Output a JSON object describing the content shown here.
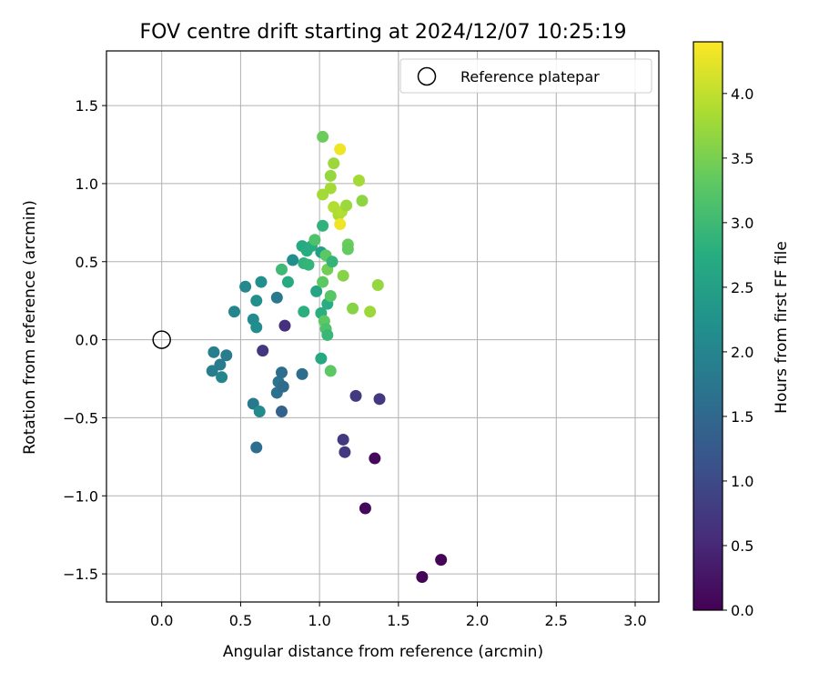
{
  "chart_data": {
    "type": "scatter",
    "title": "FOV centre drift starting at 2024/12/07 10:25:19",
    "xlabel": "Angular distance from reference (arcmin)",
    "ylabel": "Rotation from reference (arcmin)",
    "colorbar_label": "Hours from first FF file",
    "colormap": "viridis",
    "xlim": [
      -0.35,
      3.15
    ],
    "ylim": [
      -1.68,
      1.85
    ],
    "clim": [
      0.0,
      4.4
    ],
    "x_ticks": [
      0.0,
      0.5,
      1.0,
      1.5,
      2.0,
      2.5,
      3.0
    ],
    "x_tick_labels": [
      "0.0",
      "0.5",
      "1.0",
      "1.5",
      "2.0",
      "2.5",
      "3.0"
    ],
    "y_ticks": [
      -1.5,
      -1.0,
      -0.5,
      0.0,
      0.5,
      1.0,
      1.5
    ],
    "y_tick_labels": [
      "−1.5",
      "−1.0",
      "−0.5",
      "0.0",
      "0.5",
      "1.0",
      "1.5"
    ],
    "colorbar_ticks": [
      0.0,
      0.5,
      1.0,
      1.5,
      2.0,
      2.5,
      3.0,
      3.5,
      4.0
    ],
    "colorbar_tick_labels": [
      "0.0",
      "0.5",
      "1.0",
      "1.5",
      "2.0",
      "2.5",
      "3.0",
      "3.5",
      "4.0"
    ],
    "grid": true,
    "legend": {
      "location": "upper right",
      "entries": [
        {
          "label": "Reference platepar",
          "marker": "open-circle"
        }
      ]
    },
    "reference_point": {
      "x": 0.0,
      "y": 0.0
    },
    "points": [
      {
        "x": 1.65,
        "y": -1.52,
        "h": 0.05
      },
      {
        "x": 1.77,
        "y": -1.41,
        "h": 0.05
      },
      {
        "x": 1.29,
        "y": -1.08,
        "h": 0.1
      },
      {
        "x": 1.35,
        "y": -0.76,
        "h": 0.1
      },
      {
        "x": 1.16,
        "y": -0.72,
        "h": 0.75
      },
      {
        "x": 1.15,
        "y": -0.64,
        "h": 0.75
      },
      {
        "x": 1.23,
        "y": -0.36,
        "h": 0.75
      },
      {
        "x": 1.38,
        "y": -0.38,
        "h": 0.75
      },
      {
        "x": 0.78,
        "y": 0.09,
        "h": 0.6
      },
      {
        "x": 0.64,
        "y": -0.07,
        "h": 0.7
      },
      {
        "x": 0.6,
        "y": -0.69,
        "h": 1.6
      },
      {
        "x": 0.76,
        "y": -0.46,
        "h": 1.4
      },
      {
        "x": 0.58,
        "y": -0.41,
        "h": 1.8
      },
      {
        "x": 0.62,
        "y": -0.46,
        "h": 2.1
      },
      {
        "x": 0.73,
        "y": -0.34,
        "h": 1.65
      },
      {
        "x": 0.74,
        "y": -0.27,
        "h": 1.7
      },
      {
        "x": 0.77,
        "y": -0.3,
        "h": 1.55
      },
      {
        "x": 0.76,
        "y": -0.21,
        "h": 1.6
      },
      {
        "x": 0.89,
        "y": -0.22,
        "h": 1.6
      },
      {
        "x": 0.33,
        "y": -0.08,
        "h": 1.9
      },
      {
        "x": 0.32,
        "y": -0.2,
        "h": 1.9
      },
      {
        "x": 0.37,
        "y": -0.16,
        "h": 1.85
      },
      {
        "x": 0.38,
        "y": -0.24,
        "h": 2.0
      },
      {
        "x": 0.41,
        "y": -0.1,
        "h": 1.85
      },
      {
        "x": 0.46,
        "y": 0.18,
        "h": 2.0
      },
      {
        "x": 0.53,
        "y": 0.34,
        "h": 2.05
      },
      {
        "x": 0.58,
        "y": 0.13,
        "h": 2.1
      },
      {
        "x": 0.6,
        "y": 0.08,
        "h": 2.15
      },
      {
        "x": 0.6,
        "y": 0.25,
        "h": 2.2
      },
      {
        "x": 0.63,
        "y": 0.37,
        "h": 2.2
      },
      {
        "x": 0.73,
        "y": 0.27,
        "h": 1.8
      },
      {
        "x": 0.76,
        "y": 0.45,
        "h": 3.0
      },
      {
        "x": 0.8,
        "y": 0.37,
        "h": 2.7
      },
      {
        "x": 0.83,
        "y": 0.51,
        "h": 2.15
      },
      {
        "x": 0.89,
        "y": 0.6,
        "h": 2.7
      },
      {
        "x": 0.9,
        "y": 0.49,
        "h": 2.85
      },
      {
        "x": 0.9,
        "y": 0.18,
        "h": 2.8
      },
      {
        "x": 0.93,
        "y": 0.48,
        "h": 2.9
      },
      {
        "x": 0.92,
        "y": 0.57,
        "h": 2.75
      },
      {
        "x": 0.95,
        "y": 0.6,
        "h": 2.75
      },
      {
        "x": 0.97,
        "y": 0.64,
        "h": 3.15
      },
      {
        "x": 0.98,
        "y": 0.31,
        "h": 2.6
      },
      {
        "x": 1.01,
        "y": 0.56,
        "h": 2.5
      },
      {
        "x": 1.02,
        "y": 0.73,
        "h": 2.85
      },
      {
        "x": 1.01,
        "y": 0.17,
        "h": 2.8
      },
      {
        "x": 1.01,
        "y": -0.12,
        "h": 2.65
      },
      {
        "x": 1.02,
        "y": 0.37,
        "h": 3.3
      },
      {
        "x": 1.03,
        "y": 0.12,
        "h": 3.3
      },
      {
        "x": 1.04,
        "y": 0.07,
        "h": 3.15
      },
      {
        "x": 1.05,
        "y": 0.03,
        "h": 2.95
      },
      {
        "x": 1.05,
        "y": 0.23,
        "h": 2.75
      },
      {
        "x": 1.04,
        "y": 0.54,
        "h": 3.3
      },
      {
        "x": 1.05,
        "y": 0.45,
        "h": 3.45
      },
      {
        "x": 1.07,
        "y": 0.28,
        "h": 3.25
      },
      {
        "x": 1.07,
        "y": -0.2,
        "h": 3.3
      },
      {
        "x": 1.08,
        "y": 0.5,
        "h": 2.9
      },
      {
        "x": 1.02,
        "y": 1.3,
        "h": 3.4
      },
      {
        "x": 1.02,
        "y": 0.93,
        "h": 3.8
      },
      {
        "x": 1.07,
        "y": 0.97,
        "h": 3.8
      },
      {
        "x": 1.07,
        "y": 1.05,
        "h": 3.7
      },
      {
        "x": 1.09,
        "y": 1.13,
        "h": 3.75
      },
      {
        "x": 1.13,
        "y": 1.22,
        "h": 4.3
      },
      {
        "x": 1.09,
        "y": 0.85,
        "h": 3.9
      },
      {
        "x": 1.12,
        "y": 0.8,
        "h": 3.85
      },
      {
        "x": 1.13,
        "y": 0.74,
        "h": 4.3
      },
      {
        "x": 1.14,
        "y": 0.82,
        "h": 3.9
      },
      {
        "x": 1.17,
        "y": 0.86,
        "h": 3.75
      },
      {
        "x": 1.18,
        "y": 0.61,
        "h": 3.4
      },
      {
        "x": 1.18,
        "y": 0.58,
        "h": 3.35
      },
      {
        "x": 1.15,
        "y": 0.41,
        "h": 3.6
      },
      {
        "x": 1.21,
        "y": 0.2,
        "h": 3.6
      },
      {
        "x": 1.25,
        "y": 1.02,
        "h": 3.8
      },
      {
        "x": 1.27,
        "y": 0.89,
        "h": 3.65
      },
      {
        "x": 1.32,
        "y": 0.18,
        "h": 3.75
      },
      {
        "x": 1.37,
        "y": 0.35,
        "h": 3.7
      }
    ]
  }
}
